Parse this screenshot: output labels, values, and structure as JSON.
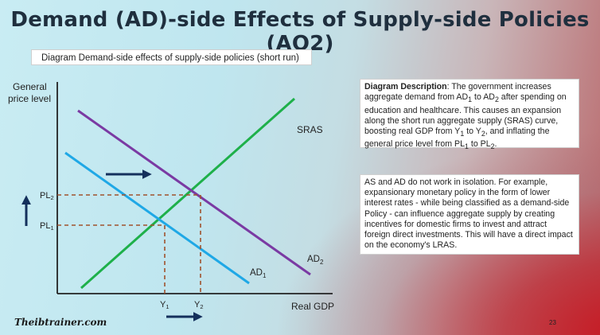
{
  "slide": {
    "title": "Demand (AD)-side Effects of Supply-side Policies (AO2)",
    "subtitle": "Diagram Demand-side effects of supply-side policies (short run)",
    "page_number": "23",
    "logo_text": "Theibtrainer.com"
  },
  "description": {
    "heading": "Diagram Description",
    "body_html": ": The government increases aggregate demand from AD<sub>1</sub> to AD<sub>2</sub> after spending on education and healthcare. This causes an expansion along the short run aggregate supply (SRAS) curve, boosting real GDP from Y<sub>1</sub> to Y<sub>2</sub>, and inflating the general price level from PL<sub>1</sub> to PL<sub>2</sub>."
  },
  "note": {
    "text": "AS and AD do not work in isolation. For example, expansionary monetary policy in the form of lower interest rates - while being classified as a demand-side Policy - can influence aggregate supply by creating incentives for domestic firms to invest and attract foreign direct investments. This will have a direct impact on the economy's LRAS."
  },
  "chart_data": {
    "type": "line",
    "ylabel": "General price level",
    "xlabel": "Real GDP",
    "series": [
      {
        "name": "SRAS",
        "color": "#1eb04a"
      },
      {
        "name": "AD1",
        "color": "#1fa8e6"
      },
      {
        "name": "AD2",
        "color": "#7a3aa3"
      }
    ],
    "y_ticks": [
      "PL2",
      "PL1"
    ],
    "x_ticks": [
      "Y1",
      "Y2"
    ],
    "colors": {
      "axis": "#222222",
      "guide": "#a0522d",
      "arrow": "#14305c"
    }
  }
}
